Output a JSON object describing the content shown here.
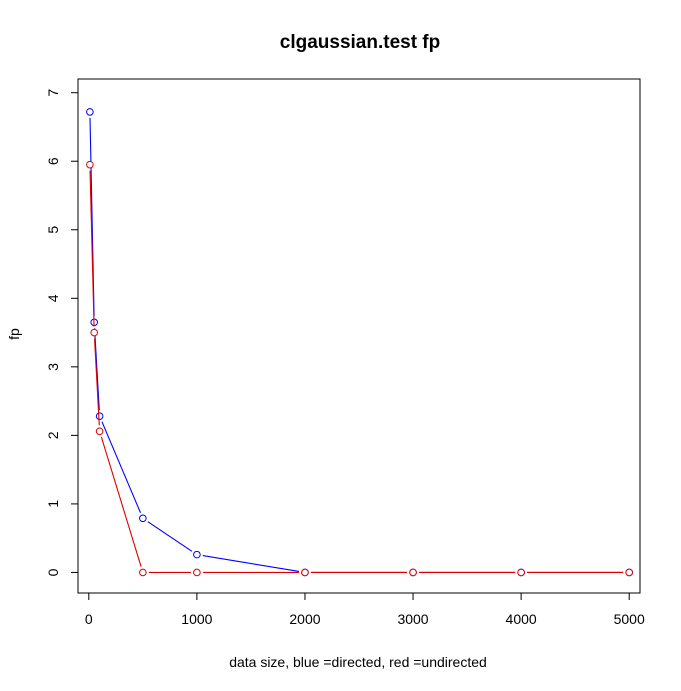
{
  "chart_data": {
    "type": "line",
    "title": "clgaussian.test fp",
    "xlabel": "data size,  blue =directed,  red =undirected",
    "ylabel": "fp",
    "xlim": [
      -100,
      5100
    ],
    "ylim": [
      -0.3,
      7.2
    ],
    "xticks": [
      0,
      1000,
      2000,
      3000,
      4000,
      5000
    ],
    "yticks": [
      0,
      1,
      2,
      3,
      4,
      5,
      6,
      7
    ],
    "grid": false,
    "series": [
      {
        "color": "#0000ff",
        "x": [
          10,
          50,
          100,
          500,
          1000,
          2000,
          3000,
          4000,
          5000
        ],
        "y": [
          6.72,
          3.65,
          2.28,
          0.79,
          0.26,
          0.0,
          0.0,
          0.0,
          0.0
        ]
      },
      {
        "color": "#dd0000",
        "x": [
          10,
          50,
          100,
          500,
          1000,
          2000,
          3000,
          4000,
          5000
        ],
        "y": [
          5.95,
          3.5,
          2.06,
          0.0,
          0.0,
          0.0,
          0.0,
          0.0,
          0.0
        ]
      }
    ]
  }
}
